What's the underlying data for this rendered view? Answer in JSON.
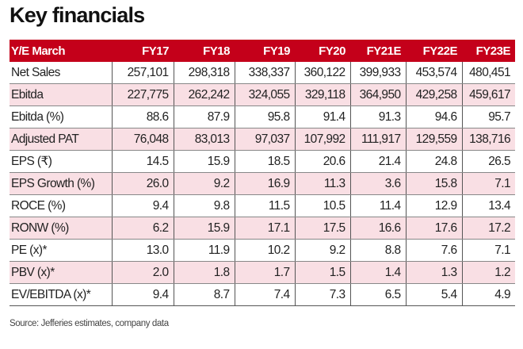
{
  "title": "Key financials",
  "table": {
    "headers": [
      "Y/E March",
      "FY17",
      "FY18",
      "FY19",
      "FY20",
      "FY21E",
      "FY22E",
      "FY23E"
    ],
    "rows": [
      {
        "label": "Net Sales",
        "values": [
          "257,101",
          "298,318",
          "338,337",
          "360,122",
          "399,933",
          "453,574",
          "480,451"
        ]
      },
      {
        "label": "Ebitda",
        "values": [
          "227,775",
          "262,242",
          "324,055",
          "329,118",
          "364,950",
          "429,258",
          "459,617"
        ]
      },
      {
        "label": "Ebitda (%)",
        "values": [
          "88.6",
          "87.9",
          "95.8",
          "91.4",
          "91.3",
          "94.6",
          "95.7"
        ]
      },
      {
        "label": "Adjusted PAT",
        "values": [
          "76,048",
          "83,013",
          "97,037",
          "107,992",
          "111,917",
          "129,559",
          "138,716"
        ]
      },
      {
        "label": "EPS (₹)",
        "values": [
          "14.5",
          "15.9",
          "18.5",
          "20.6",
          "21.4",
          "24.8",
          "26.5"
        ]
      },
      {
        "label": "EPS Growth (%)",
        "values": [
          "26.0",
          "9.2",
          "16.9",
          "11.3",
          "3.6",
          "15.8",
          "7.1"
        ]
      },
      {
        "label": "ROCE (%)",
        "values": [
          "9.4",
          "9.8",
          "11.5",
          "10.5",
          "11.4",
          "12.9",
          "13.4"
        ]
      },
      {
        "label": "RONW (%)",
        "values": [
          "6.2",
          "15.9",
          "17.1",
          "17.5",
          "16.6",
          "17.6",
          "17.2"
        ]
      },
      {
        "label": "PE (x)*",
        "values": [
          "13.0",
          "11.9",
          "10.2",
          "9.2",
          "8.8",
          "7.6",
          "7.1"
        ]
      },
      {
        "label": "PBV (x)*",
        "values": [
          "2.0",
          "1.8",
          "1.7",
          "1.5",
          "1.4",
          "1.3",
          "1.2"
        ]
      },
      {
        "label": "EV/EBITDA (x)*",
        "values": [
          "9.4",
          "8.7",
          "7.4",
          "7.3",
          "6.5",
          "5.4",
          "4.9"
        ]
      }
    ]
  },
  "source": "Source: Jefferies estimates, company data",
  "colors": {
    "header_bg": "#c4001a",
    "alt_row_bg": "#f9dfe4"
  }
}
